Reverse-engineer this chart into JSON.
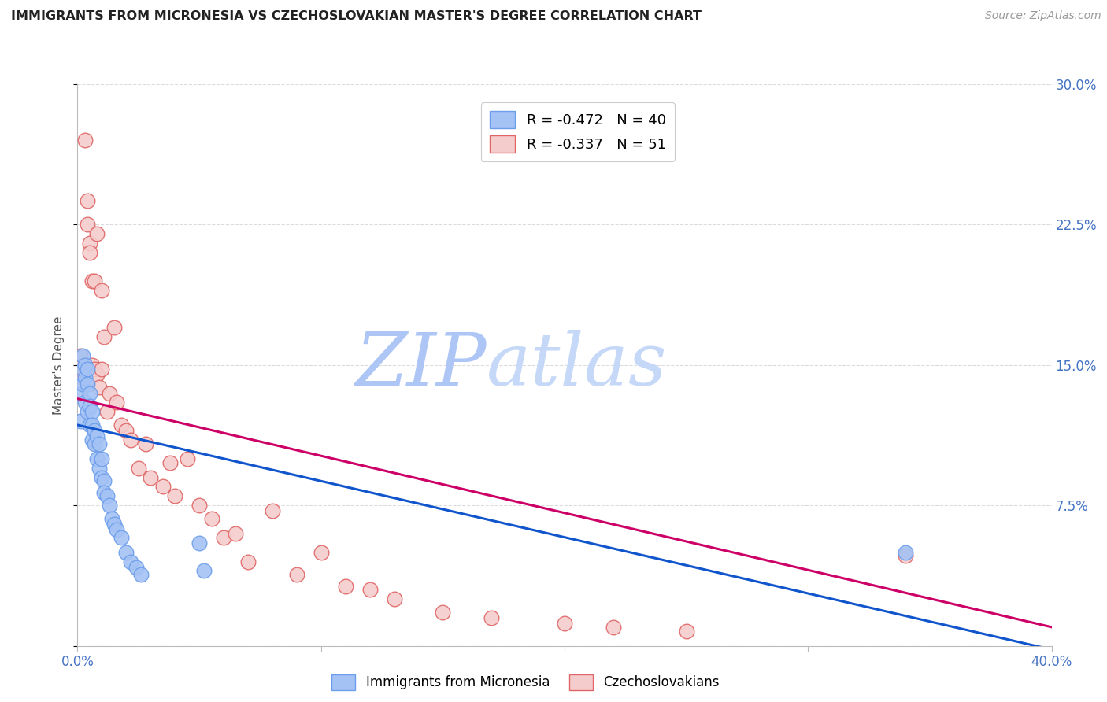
{
  "title": "IMMIGRANTS FROM MICRONESIA VS CZECHOSLOVAKIAN MASTER'S DEGREE CORRELATION CHART",
  "source": "Source: ZipAtlas.com",
  "ylabel": "Master's Degree",
  "y_ticks": [
    0.0,
    0.075,
    0.15,
    0.225,
    0.3
  ],
  "y_tick_labels": [
    "",
    "7.5%",
    "15.0%",
    "22.5%",
    "30.0%"
  ],
  "x_ticks": [
    0.0,
    0.1,
    0.2,
    0.3,
    0.4
  ],
  "x_tick_labels": [
    "0.0%",
    "",
    "",
    "",
    "40.0%"
  ],
  "xlim": [
    0.0,
    0.4
  ],
  "ylim": [
    0.0,
    0.3
  ],
  "legend_R1": "R = -0.472",
  "legend_N1": "N = 40",
  "legend_R2": "R = -0.337",
  "legend_N2": " 51",
  "blue_color": "#a4c2f4",
  "pink_color": "#f4cccc",
  "blue_edge_color": "#6d9eeb",
  "pink_edge_color": "#e06666",
  "blue_line_color": "#1155cc",
  "pink_line_color": "#cc0066",
  "watermark_ZIP_color": "#b7cefa",
  "watermark_atlas_color": "#c9d9f8",
  "grid_color": "#cccccc",
  "axis_label_color": "#4472c4",
  "title_color": "#222222",
  "blue_scatter_x": [
    0.001,
    0.001,
    0.002,
    0.002,
    0.002,
    0.003,
    0.003,
    0.003,
    0.004,
    0.004,
    0.004,
    0.005,
    0.005,
    0.005,
    0.006,
    0.006,
    0.006,
    0.007,
    0.007,
    0.008,
    0.008,
    0.009,
    0.009,
    0.01,
    0.01,
    0.011,
    0.011,
    0.012,
    0.013,
    0.014,
    0.015,
    0.016,
    0.018,
    0.02,
    0.022,
    0.024,
    0.026,
    0.05,
    0.052,
    0.34
  ],
  "blue_scatter_y": [
    0.135,
    0.12,
    0.155,
    0.148,
    0.14,
    0.15,
    0.143,
    0.13,
    0.148,
    0.14,
    0.125,
    0.135,
    0.128,
    0.118,
    0.125,
    0.118,
    0.11,
    0.115,
    0.108,
    0.112,
    0.1,
    0.108,
    0.095,
    0.1,
    0.09,
    0.088,
    0.082,
    0.08,
    0.075,
    0.068,
    0.065,
    0.062,
    0.058,
    0.05,
    0.045,
    0.042,
    0.038,
    0.055,
    0.04,
    0.05
  ],
  "pink_scatter_x": [
    0.001,
    0.001,
    0.002,
    0.002,
    0.003,
    0.003,
    0.004,
    0.004,
    0.005,
    0.005,
    0.006,
    0.006,
    0.007,
    0.007,
    0.008,
    0.008,
    0.009,
    0.01,
    0.01,
    0.011,
    0.012,
    0.013,
    0.015,
    0.016,
    0.018,
    0.02,
    0.022,
    0.025,
    0.028,
    0.03,
    0.035,
    0.038,
    0.04,
    0.045,
    0.05,
    0.055,
    0.06,
    0.065,
    0.07,
    0.08,
    0.09,
    0.1,
    0.11,
    0.12,
    0.13,
    0.15,
    0.17,
    0.2,
    0.22,
    0.25,
    0.34
  ],
  "pink_scatter_y": [
    0.155,
    0.148,
    0.15,
    0.143,
    0.145,
    0.27,
    0.238,
    0.225,
    0.215,
    0.21,
    0.195,
    0.15,
    0.195,
    0.148,
    0.145,
    0.22,
    0.138,
    0.148,
    0.19,
    0.165,
    0.125,
    0.135,
    0.17,
    0.13,
    0.118,
    0.115,
    0.11,
    0.095,
    0.108,
    0.09,
    0.085,
    0.098,
    0.08,
    0.1,
    0.075,
    0.068,
    0.058,
    0.06,
    0.045,
    0.072,
    0.038,
    0.05,
    0.032,
    0.03,
    0.025,
    0.018,
    0.015,
    0.012,
    0.01,
    0.008,
    0.048
  ],
  "blue_trend_y_start": 0.118,
  "blue_trend_y_end": -0.002,
  "pink_trend_y_start": 0.132,
  "pink_trend_y_end": 0.01
}
